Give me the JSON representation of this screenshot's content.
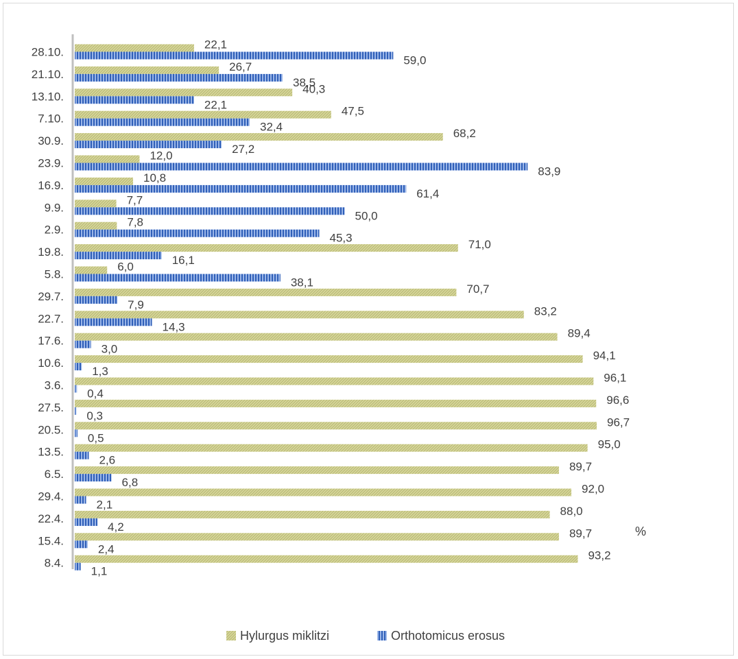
{
  "chart_data": {
    "type": "bar",
    "orientation": "horizontal",
    "unit_label": "%",
    "categories": [
      "28.10.",
      "21.10.",
      "13.10.",
      "7.10.",
      "30.9.",
      "23.9.",
      "16.9.",
      "9.9.",
      "2.9.",
      "19.8.",
      "5.8.",
      "29.7.",
      "22.7.",
      "17.6.",
      "10.6.",
      "3.6.",
      "27.5.",
      "20.5.",
      "13.5.",
      "6.5.",
      "29.4.",
      "22.4.",
      "15.4.",
      "8.4."
    ],
    "series": [
      {
        "name": "Hylurgus miklitzi",
        "color": "#c9c98a",
        "values": [
          22.1,
          26.7,
          40.3,
          47.5,
          68.2,
          12.0,
          10.8,
          7.7,
          7.8,
          71.0,
          6.0,
          70.7,
          83.2,
          89.4,
          94.1,
          96.1,
          96.6,
          96.7,
          95.0,
          89.7,
          92.0,
          88.0,
          89.7,
          93.2
        ],
        "labels": [
          "22,1",
          "26,7",
          "40,3",
          "47,5",
          "68,2",
          "12,0",
          "10,8",
          "7,7",
          "7,8",
          "71,0",
          "6,0",
          "70,7",
          "83,2",
          "89,4",
          "94,1",
          "96,1",
          "96,6",
          "96,7",
          "95,0",
          "89,7",
          "92,0",
          "88,0",
          "89,7",
          "93,2"
        ]
      },
      {
        "name": "Orthotomicus erosus",
        "color": "#4472c4",
        "values": [
          59.0,
          38.5,
          22.1,
          32.4,
          27.2,
          83.9,
          61.4,
          50.0,
          45.3,
          16.1,
          38.1,
          7.9,
          14.3,
          3.0,
          1.3,
          0.4,
          0.3,
          0.5,
          2.6,
          6.8,
          2.1,
          4.2,
          2.4,
          1.1
        ],
        "labels": [
          "59,0",
          "38,5",
          "22,1",
          "32,4",
          "27,2",
          "83,9",
          "61,4",
          "50,0",
          "45,3",
          "16,1",
          "38,1",
          "7,9",
          "14,3",
          "3,0",
          "1,3",
          "0,4",
          "0,3",
          "0,5",
          "2,6",
          "6,8",
          "2,1",
          "4,2",
          "2,4",
          "1,1"
        ]
      }
    ],
    "xlim": [
      0,
      100
    ],
    "grid": false,
    "legend_position": "bottom"
  }
}
